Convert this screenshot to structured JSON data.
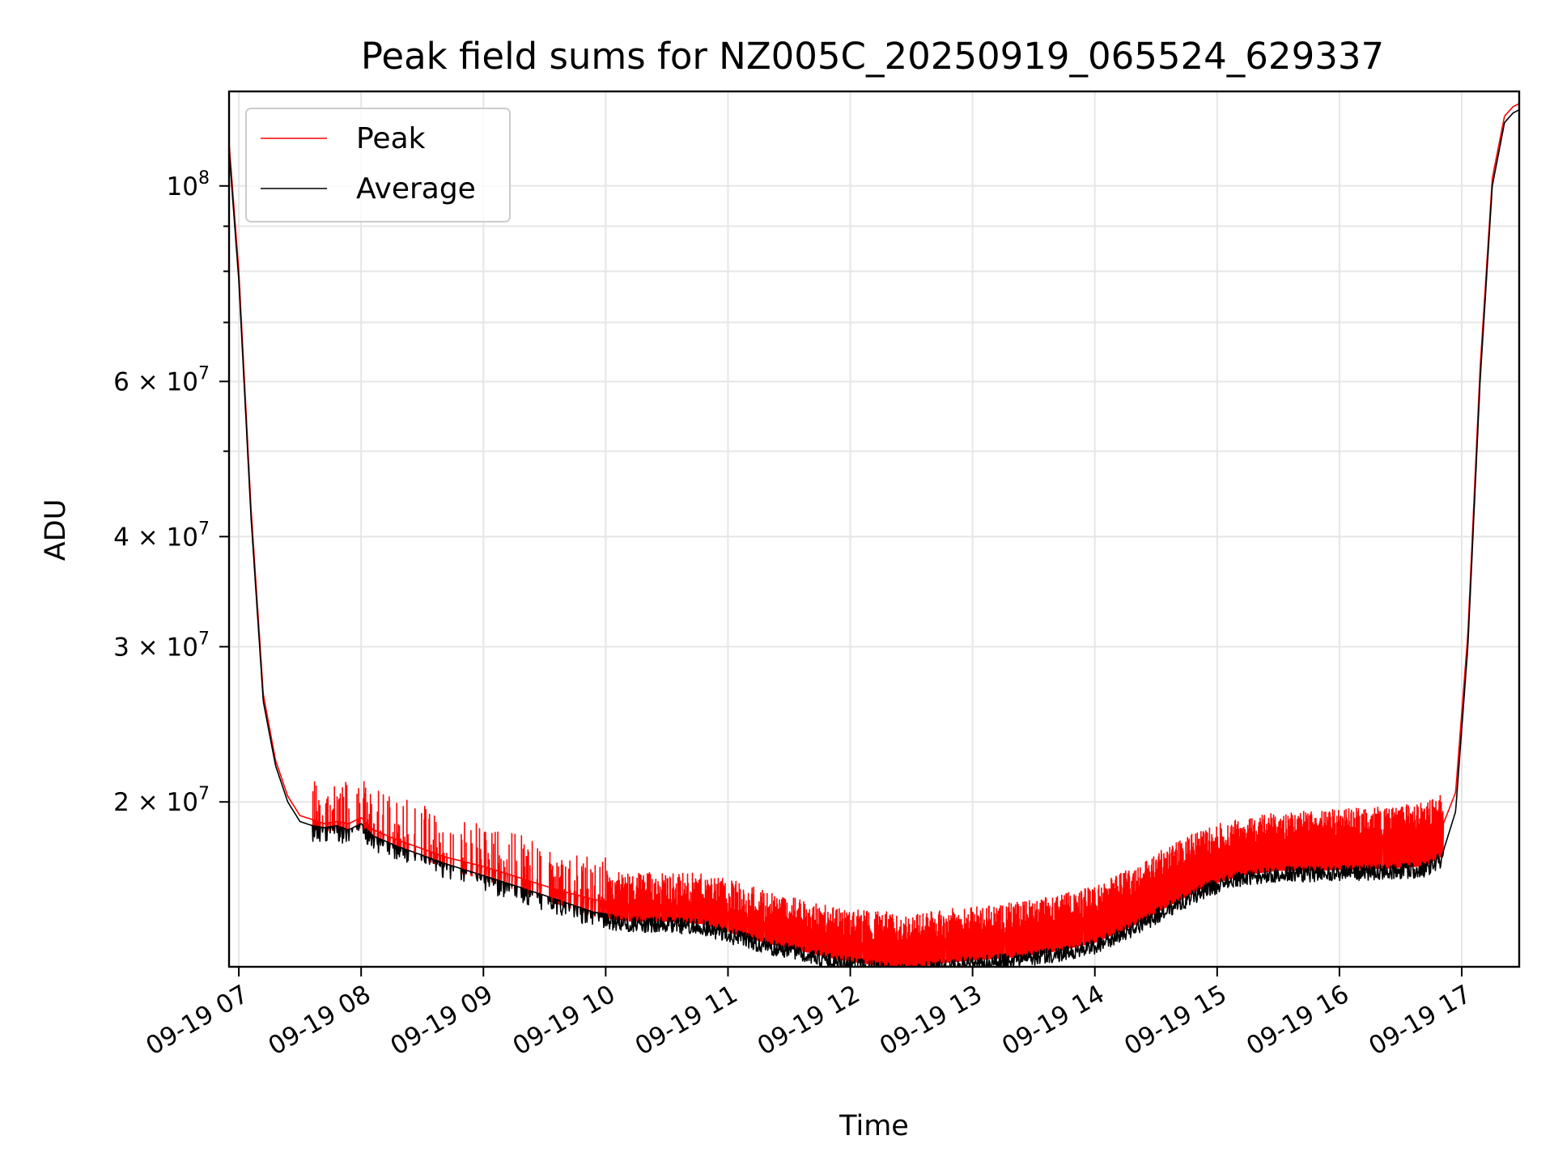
{
  "chart_data": {
    "type": "line",
    "title": "Peak field sums for NZ005C_20250919_065524_629337",
    "xlabel": "Time",
    "ylabel": "ADU",
    "yscale": "log",
    "ylim": [
      13000000,
      128000000
    ],
    "xlim_hours": [
      6.92,
      17.47
    ],
    "x_ticks": [
      {
        "hour": 7,
        "label": "09-19 07"
      },
      {
        "hour": 8,
        "label": "09-19 08"
      },
      {
        "hour": 9,
        "label": "09-19 09"
      },
      {
        "hour": 10,
        "label": "09-19 10"
      },
      {
        "hour": 11,
        "label": "09-19 11"
      },
      {
        "hour": 12,
        "label": "09-19 12"
      },
      {
        "hour": 13,
        "label": "09-19 13"
      },
      {
        "hour": 14,
        "label": "09-19 14"
      },
      {
        "hour": 15,
        "label": "09-19 15"
      },
      {
        "hour": 16,
        "label": "09-19 16"
      },
      {
        "hour": 17,
        "label": "09-19 17"
      }
    ],
    "y_ticks": [
      {
        "value": 20000000,
        "base": "2 × 10",
        "exp": "7"
      },
      {
        "value": 30000000,
        "base": "3 × 10",
        "exp": "7"
      },
      {
        "value": 40000000,
        "base": "4 × 10",
        "exp": "7"
      },
      {
        "value": 60000000,
        "base": "6 × 10",
        "exp": "7"
      },
      {
        "value": 100000000,
        "base": "10",
        "exp": "8"
      }
    ],
    "y_minor_ticks": [
      50000000,
      70000000,
      80000000,
      90000000
    ],
    "grid": true,
    "legend_position": "upper-left",
    "series": [
      {
        "name": "Average",
        "color": "#000000",
        "baseline": {
          "hours": [
            6.92,
            7.0,
            7.1,
            7.2,
            7.3,
            7.4,
            7.5,
            7.6,
            7.7,
            7.8,
            7.9,
            8.0,
            8.1,
            8.3,
            8.5,
            8.7,
            9.0,
            9.3,
            9.6,
            9.9,
            10.2,
            10.5,
            10.8,
            11.0,
            11.3,
            11.6,
            11.9,
            12.2,
            12.5,
            12.8,
            13.1,
            13.4,
            13.7,
            14.0,
            14.3,
            14.6,
            14.9,
            15.2,
            15.5,
            15.8,
            16.1,
            16.4,
            16.7,
            16.85,
            16.95,
            17.05,
            17.15,
            17.25,
            17.35,
            17.42,
            17.47
          ],
          "values": [
            110000000,
            78000000,
            42000000,
            26000000,
            22000000,
            20000000,
            19000000,
            18800000,
            18700000,
            18800000,
            18600000,
            18900000,
            18300000,
            17800000,
            17400000,
            17000000,
            16500000,
            16000000,
            15500000,
            15000000,
            14800000,
            14800000,
            14700000,
            14400000,
            14000000,
            13700000,
            13400000,
            13200000,
            13100000,
            13300000,
            13400000,
            13500000,
            13700000,
            14000000,
            14600000,
            15400000,
            16200000,
            16700000,
            16900000,
            16900000,
            16950000,
            17000000,
            17100000,
            17600000,
            19500000,
            30000000,
            60000000,
            100000000,
            118000000,
            121000000,
            122000000
          ]
        }
      },
      {
        "name": "Peak",
        "color": "#ff0000",
        "baseline": {
          "hours": [
            6.92,
            7.0,
            7.1,
            7.2,
            7.3,
            7.4,
            7.5,
            7.6,
            7.7,
            7.8,
            7.9,
            8.0,
            8.1,
            8.3,
            8.5,
            8.7,
            9.0,
            9.3,
            9.6,
            9.9,
            10.2,
            10.5,
            10.8,
            11.0,
            11.3,
            11.6,
            11.9,
            12.2,
            12.5,
            12.8,
            13.1,
            13.4,
            13.7,
            14.0,
            14.3,
            14.6,
            14.9,
            15.2,
            15.5,
            15.8,
            16.1,
            16.4,
            16.7,
            16.85,
            16.95,
            17.05,
            17.15,
            17.25,
            17.35,
            17.42,
            17.47
          ],
          "values": [
            112000000,
            80000000,
            43000000,
            26500000,
            22300000,
            20300000,
            19300000,
            19100000,
            18900000,
            19000000,
            18900000,
            19200000,
            18600000,
            18100000,
            17700000,
            17300000,
            16900000,
            16400000,
            15900000,
            15500000,
            15300000,
            15300000,
            15200000,
            15000000,
            14600000,
            14200000,
            13900000,
            13800000,
            13800000,
            14000000,
            14100000,
            14300000,
            14500000,
            14900000,
            15600000,
            16500000,
            17300000,
            17800000,
            18000000,
            18100000,
            18200000,
            18300000,
            18500000,
            18900000,
            20500000,
            31000000,
            62000000,
            102000000,
            120000000,
            123000000,
            124000000
          ]
        },
        "spike_bands": [
          {
            "from_hour": 7.6,
            "to_hour": 10.0,
            "max_ratio": 1.12,
            "density": 0.35
          },
          {
            "from_hour": 10.0,
            "to_hour": 12.3,
            "max_ratio": 1.09,
            "density": 0.95
          },
          {
            "from_hour": 12.3,
            "to_hour": 16.85,
            "max_ratio": 1.08,
            "density": 1.0
          }
        ]
      }
    ]
  }
}
